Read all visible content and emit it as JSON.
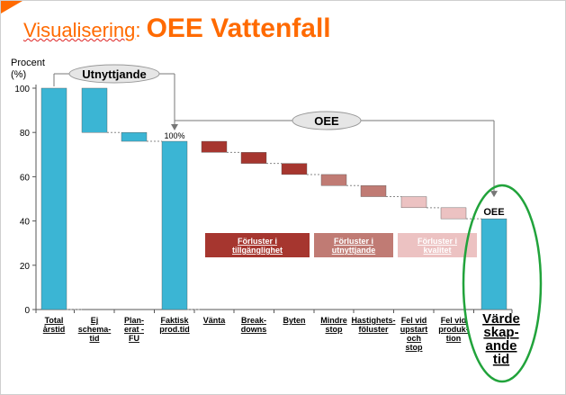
{
  "slide": {
    "title_prefix": "Visualisering",
    "title_colon": ": ",
    "title_main": "OEE Vattenfall",
    "accent_color": "#ff6a00"
  },
  "chart_data": {
    "type": "bar",
    "subtype": "waterfall",
    "ylabel_line1": "Procent",
    "ylabel_line2": "(%)",
    "ylim": [
      0,
      100
    ],
    "yticks": [
      0,
      20,
      40,
      60,
      80,
      100
    ],
    "categories": [
      {
        "lines": [
          "Total",
          "årstid"
        ],
        "low": 0,
        "high": 100,
        "color": "#3bb5d4"
      },
      {
        "lines": [
          "Ej",
          "schema-",
          "tid"
        ],
        "low": 80,
        "high": 100,
        "color": "#3bb5d4"
      },
      {
        "lines": [
          "Plan-",
          "erat -",
          "FU"
        ],
        "low": 76,
        "high": 80,
        "color": "#3bb5d4"
      },
      {
        "lines": [
          "Faktisk",
          "prod.tid"
        ],
        "low": 0,
        "high": 76,
        "color": "#3bb5d4"
      },
      {
        "lines": [
          "Vänta"
        ],
        "low": 71,
        "high": 76,
        "color": "#a6362f"
      },
      {
        "lines": [
          "Break-",
          "downs"
        ],
        "low": 66,
        "high": 71,
        "color": "#a6362f"
      },
      {
        "lines": [
          "Byten"
        ],
        "low": 61,
        "high": 66,
        "color": "#a6362f"
      },
      {
        "lines": [
          "Mindre",
          "stop"
        ],
        "low": 56,
        "high": 61,
        "color": "#c07b74"
      },
      {
        "lines": [
          "Hastighets-",
          "föluster"
        ],
        "low": 51,
        "high": 56,
        "color": "#c07b74"
      },
      {
        "lines": [
          "Fel vid",
          "upstart",
          "och",
          "stop"
        ],
        "low": 46,
        "high": 51,
        "color": "#ecc2c2"
      },
      {
        "lines": [
          "Fel vid",
          "produk-",
          "tion"
        ],
        "low": 41,
        "high": 46,
        "color": "#ecc2c2"
      },
      {
        "lines": [
          "Värde",
          "skap-",
          "ande",
          "tid"
        ],
        "low": 0,
        "high": 41,
        "color": "#3bb5d4"
      }
    ],
    "annotations": {
      "utnyttjande_label": "Utnyttjande",
      "oee_label": "OEE",
      "pct_label": "100%",
      "oee_bar_label": "OEE"
    },
    "legend": [
      {
        "lines": [
          "Förluster i",
          "tillgänglighet"
        ],
        "color": "#a6362f",
        "text_color": "#ffffff"
      },
      {
        "lines": [
          "Förluster i",
          "utnyttjande"
        ],
        "color": "#c07b74",
        "text_color": "#ffffff"
      },
      {
        "lines": [
          "Förluster i",
          "kvalitet"
        ],
        "color": "#ecc2c2",
        "text_color": "#ffffff"
      }
    ],
    "highlight_color": "#21a33b"
  }
}
